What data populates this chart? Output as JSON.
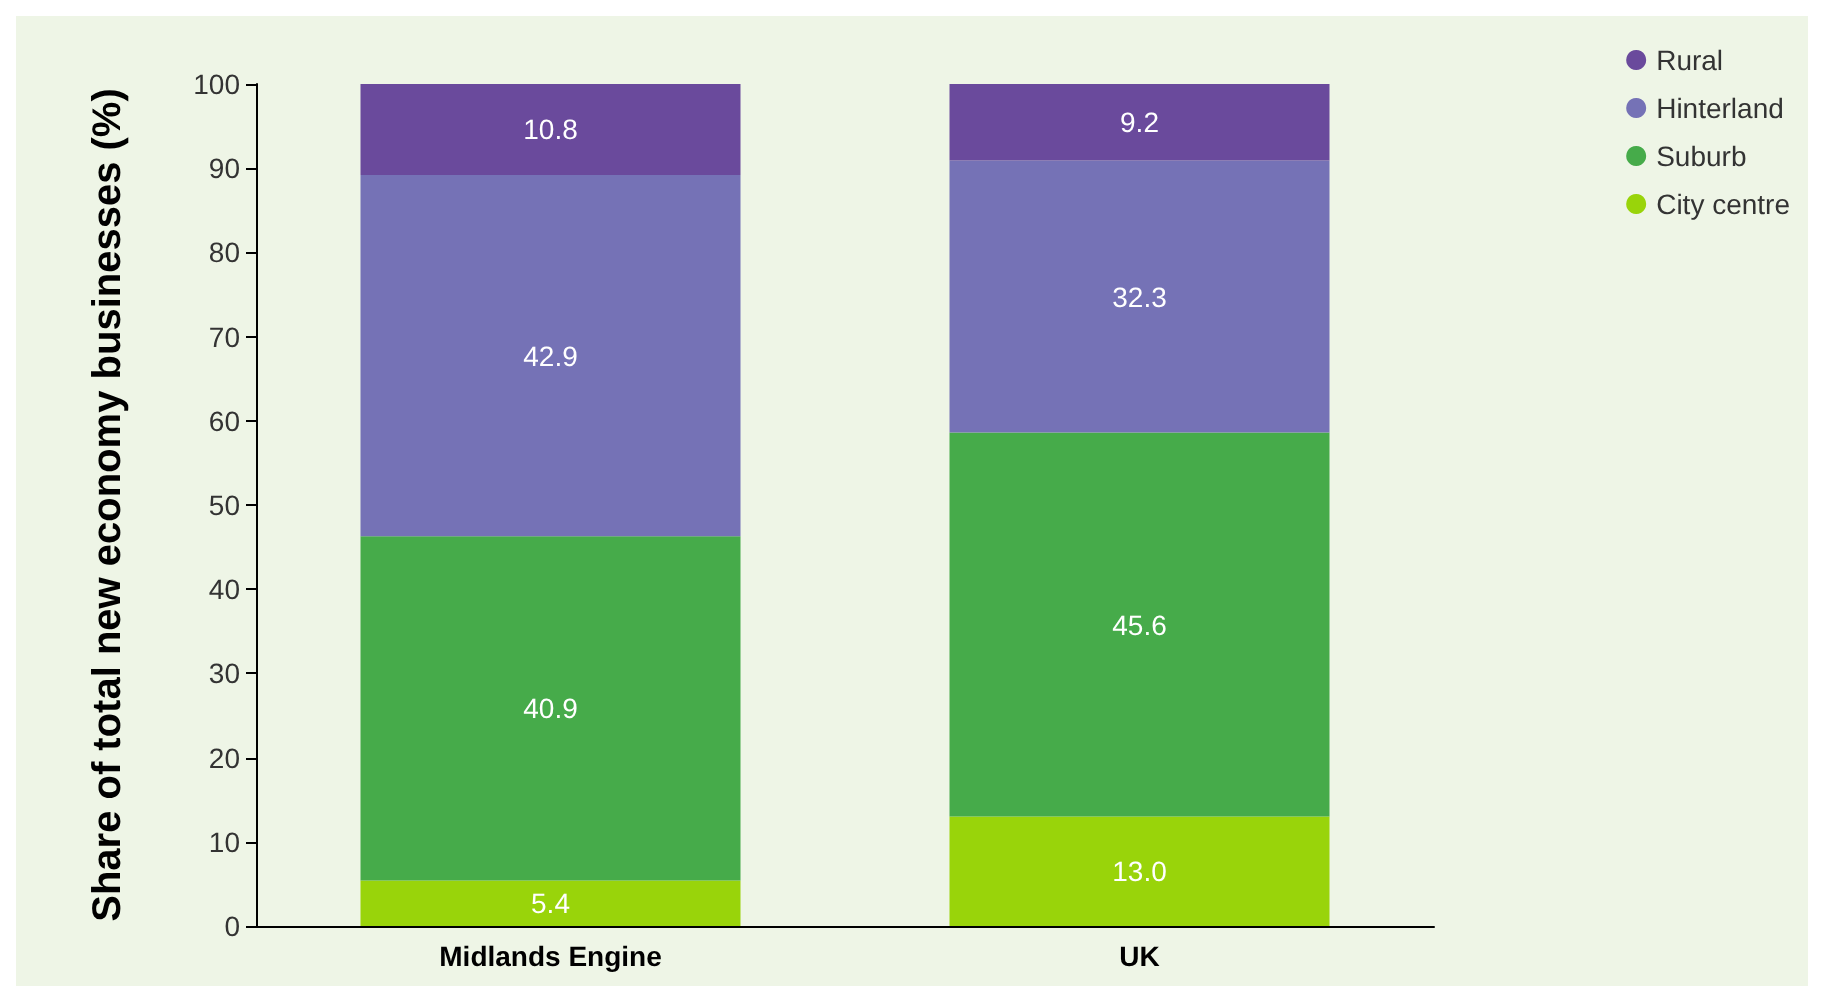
{
  "chart_data": {
    "type": "bar",
    "stacked": true,
    "ylabel": "Share of total new economy businesses (%)",
    "categories": [
      "Midlands Engine",
      "UK"
    ],
    "series": [
      {
        "name": "City centre",
        "color": "#99d40a",
        "values": [
          5.4,
          13.0
        ],
        "value_labels": [
          "5.4",
          "13.0"
        ]
      },
      {
        "name": "Suburb",
        "color": "#46ab4a",
        "values": [
          40.9,
          45.6
        ],
        "value_labels": [
          "40.9",
          "45.6"
        ]
      },
      {
        "name": "Hinterland",
        "color": "#7572b6",
        "values": [
          42.9,
          32.3
        ],
        "value_labels": [
          "42.9",
          "32.3"
        ]
      },
      {
        "name": "Rural",
        "color": "#6a4a9c",
        "values": [
          10.8,
          9.2
        ],
        "value_labels": [
          "10.8",
          "9.2"
        ]
      }
    ],
    "ylim": [
      0,
      100
    ],
    "yticks": [
      0,
      10,
      20,
      30,
      40,
      50,
      60,
      70,
      80,
      90,
      100
    ],
    "grid": false,
    "legend": "top right"
  }
}
